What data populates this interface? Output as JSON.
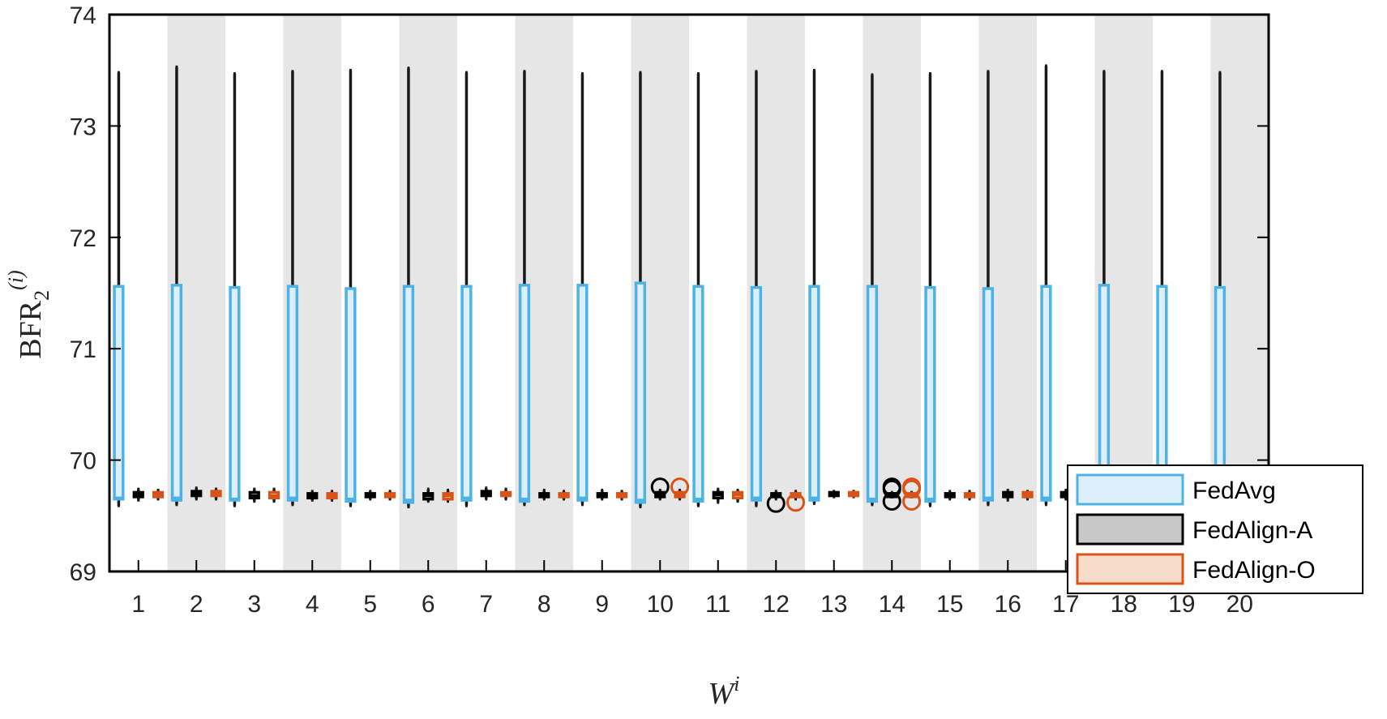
{
  "chart_data": {
    "type": "box",
    "xlabel": "W",
    "xlabel_sup": "i",
    "ylabel": "BFR",
    "ylabel_sub": "2",
    "ylabel_sup": "(i)",
    "ylim": [
      69,
      74
    ],
    "yticks": [
      "69",
      "70",
      "71",
      "72",
      "73",
      "74"
    ],
    "categories": [
      "1",
      "2",
      "3",
      "4",
      "5",
      "6",
      "7",
      "8",
      "9",
      "10",
      "11",
      "12",
      "13",
      "14",
      "15",
      "16",
      "17",
      "18",
      "19",
      "20"
    ],
    "shaded_bands": [
      "2",
      "4",
      "6",
      "8",
      "10",
      "12",
      "14",
      "16",
      "18",
      "20"
    ],
    "legend_position": "bottom-right",
    "series": [
      {
        "name": "FedAvg",
        "edge_color": "#4DB3E6",
        "fill_color": "#DDEFFA",
        "median_color": "#4DB3E6",
        "boxes": [
          {
            "min": 69.59,
            "q1": 69.65,
            "median": 69.66,
            "q3": 71.56,
            "max": 73.48,
            "outliers": []
          },
          {
            "min": 69.6,
            "q1": 69.64,
            "median": 69.66,
            "q3": 71.57,
            "max": 73.53,
            "outliers": []
          },
          {
            "min": 69.59,
            "q1": 69.64,
            "median": 69.65,
            "q3": 71.55,
            "max": 73.47,
            "outliers": []
          },
          {
            "min": 69.6,
            "q1": 69.64,
            "median": 69.66,
            "q3": 71.56,
            "max": 73.49,
            "outliers": []
          },
          {
            "min": 69.59,
            "q1": 69.63,
            "median": 69.65,
            "q3": 71.54,
            "max": 73.5,
            "outliers": []
          },
          {
            "min": 69.58,
            "q1": 69.62,
            "median": 69.64,
            "q3": 71.56,
            "max": 73.52,
            "outliers": []
          },
          {
            "min": 69.59,
            "q1": 69.64,
            "median": 69.66,
            "q3": 71.56,
            "max": 73.48,
            "outliers": []
          },
          {
            "min": 69.6,
            "q1": 69.63,
            "median": 69.65,
            "q3": 71.57,
            "max": 73.49,
            "outliers": []
          },
          {
            "min": 69.6,
            "q1": 69.64,
            "median": 69.66,
            "q3": 71.57,
            "max": 73.47,
            "outliers": []
          },
          {
            "min": 69.58,
            "q1": 69.62,
            "median": 69.64,
            "q3": 71.59,
            "max": 73.48,
            "outliers": []
          },
          {
            "min": 69.59,
            "q1": 69.63,
            "median": 69.65,
            "q3": 71.56,
            "max": 73.47,
            "outliers": []
          },
          {
            "min": 69.59,
            "q1": 69.64,
            "median": 69.66,
            "q3": 71.55,
            "max": 73.49,
            "outliers": []
          },
          {
            "min": 69.61,
            "q1": 69.64,
            "median": 69.66,
            "q3": 71.56,
            "max": 73.5,
            "outliers": []
          },
          {
            "min": 69.6,
            "q1": 69.63,
            "median": 69.65,
            "q3": 71.56,
            "max": 73.46,
            "outliers": []
          },
          {
            "min": 69.59,
            "q1": 69.63,
            "median": 69.65,
            "q3": 71.55,
            "max": 73.47,
            "outliers": []
          },
          {
            "min": 69.6,
            "q1": 69.64,
            "median": 69.66,
            "q3": 71.54,
            "max": 73.49,
            "outliers": []
          },
          {
            "min": 69.6,
            "q1": 69.64,
            "median": 69.66,
            "q3": 71.56,
            "max": 73.54,
            "outliers": []
          },
          {
            "min": 69.6,
            "q1": 69.64,
            "median": 69.66,
            "q3": 71.57,
            "max": 73.49,
            "outliers": []
          },
          {
            "min": 69.6,
            "q1": 69.64,
            "median": 69.66,
            "q3": 71.56,
            "max": 73.49,
            "outliers": []
          },
          {
            "min": 69.6,
            "q1": 69.64,
            "median": 69.66,
            "q3": 71.55,
            "max": 73.48,
            "outliers": []
          }
        ]
      },
      {
        "name": "FedAlign-A",
        "edge_color": "#000000",
        "fill_color": "#C8C8C8",
        "median_color": "#000000",
        "boxes": [
          {
            "min": 69.64,
            "q1": 69.67,
            "median": 69.69,
            "q3": 69.71,
            "max": 69.74,
            "outliers": []
          },
          {
            "min": 69.65,
            "q1": 69.68,
            "median": 69.7,
            "q3": 69.72,
            "max": 69.75,
            "outliers": []
          },
          {
            "min": 69.63,
            "q1": 69.66,
            "median": 69.68,
            "q3": 69.71,
            "max": 69.74,
            "outliers": []
          },
          {
            "min": 69.64,
            "q1": 69.66,
            "median": 69.68,
            "q3": 69.7,
            "max": 69.72,
            "outliers": []
          },
          {
            "min": 69.65,
            "q1": 69.67,
            "median": 69.69,
            "q3": 69.7,
            "max": 69.72,
            "outliers": []
          },
          {
            "min": 69.63,
            "q1": 69.65,
            "median": 69.68,
            "q3": 69.7,
            "max": 69.74,
            "outliers": []
          },
          {
            "min": 69.65,
            "q1": 69.68,
            "median": 69.7,
            "q3": 69.72,
            "max": 69.75,
            "outliers": []
          },
          {
            "min": 69.65,
            "q1": 69.67,
            "median": 69.69,
            "q3": 69.7,
            "max": 69.73,
            "outliers": []
          },
          {
            "min": 69.65,
            "q1": 69.67,
            "median": 69.69,
            "q3": 69.7,
            "max": 69.73,
            "outliers": []
          },
          {
            "min": 69.65,
            "q1": 69.67,
            "median": 69.69,
            "q3": 69.71,
            "max": 69.73,
            "outliers": [
              69.76
            ]
          },
          {
            "min": 69.62,
            "q1": 69.66,
            "median": 69.69,
            "q3": 69.71,
            "max": 69.74,
            "outliers": []
          },
          {
            "min": 69.65,
            "q1": 69.67,
            "median": 69.68,
            "q3": 69.7,
            "max": 69.72,
            "outliers": [
              69.61
            ]
          },
          {
            "min": 69.67,
            "q1": 69.68,
            "median": 69.7,
            "q3": 69.71,
            "max": 69.72,
            "outliers": []
          },
          {
            "min": 69.67,
            "q1": 69.68,
            "median": 69.69,
            "q3": 69.7,
            "max": 69.71,
            "outliers": [
              69.76,
              69.74,
              69.63
            ]
          },
          {
            "min": 69.65,
            "q1": 69.67,
            "median": 69.69,
            "q3": 69.7,
            "max": 69.72,
            "outliers": []
          },
          {
            "min": 69.64,
            "q1": 69.67,
            "median": 69.69,
            "q3": 69.71,
            "max": 69.73,
            "outliers": []
          },
          {
            "min": 69.65,
            "q1": 69.67,
            "median": 69.69,
            "q3": 69.71,
            "max": 69.73,
            "outliers": []
          },
          {
            "min": 69.65,
            "q1": 69.67,
            "median": 69.69,
            "q3": 69.71,
            "max": 69.73,
            "outliers": []
          },
          {
            "min": 69.65,
            "q1": 69.67,
            "median": 69.69,
            "q3": 69.71,
            "max": 69.73,
            "outliers": []
          },
          {
            "min": 69.65,
            "q1": 69.67,
            "median": 69.69,
            "q3": 69.71,
            "max": 69.73,
            "outliers": []
          }
        ]
      },
      {
        "name": "FedAlign-O",
        "edge_color": "#D95319",
        "fill_color": "#F8DCCB",
        "median_color": "#D95319",
        "boxes": [
          {
            "min": 69.65,
            "q1": 69.67,
            "median": 69.69,
            "q3": 69.71,
            "max": 69.73,
            "outliers": []
          },
          {
            "min": 69.65,
            "q1": 69.68,
            "median": 69.7,
            "q3": 69.72,
            "max": 69.74,
            "outliers": []
          },
          {
            "min": 69.63,
            "q1": 69.66,
            "median": 69.68,
            "q3": 69.71,
            "max": 69.74,
            "outliers": []
          },
          {
            "min": 69.64,
            "q1": 69.66,
            "median": 69.68,
            "q3": 69.7,
            "max": 69.72,
            "outliers": []
          },
          {
            "min": 69.65,
            "q1": 69.67,
            "median": 69.69,
            "q3": 69.7,
            "max": 69.72,
            "outliers": []
          },
          {
            "min": 69.63,
            "q1": 69.65,
            "median": 69.68,
            "q3": 69.7,
            "max": 69.73,
            "outliers": []
          },
          {
            "min": 69.65,
            "q1": 69.68,
            "median": 69.7,
            "q3": 69.71,
            "max": 69.74,
            "outliers": []
          },
          {
            "min": 69.65,
            "q1": 69.67,
            "median": 69.69,
            "q3": 69.7,
            "max": 69.72,
            "outliers": []
          },
          {
            "min": 69.65,
            "q1": 69.67,
            "median": 69.68,
            "q3": 69.7,
            "max": 69.72,
            "outliers": []
          },
          {
            "min": 69.65,
            "q1": 69.67,
            "median": 69.69,
            "q3": 69.71,
            "max": 69.73,
            "outliers": [
              69.76
            ]
          },
          {
            "min": 69.63,
            "q1": 69.66,
            "median": 69.69,
            "q3": 69.71,
            "max": 69.73,
            "outliers": []
          },
          {
            "min": 69.65,
            "q1": 69.67,
            "median": 69.68,
            "q3": 69.7,
            "max": 69.72,
            "outliers": [
              69.62
            ]
          },
          {
            "min": 69.67,
            "q1": 69.68,
            "median": 69.7,
            "q3": 69.71,
            "max": 69.72,
            "outliers": []
          },
          {
            "min": 69.67,
            "q1": 69.68,
            "median": 69.69,
            "q3": 69.7,
            "max": 69.71,
            "outliers": [
              69.76,
              69.74,
              69.63
            ]
          },
          {
            "min": 69.65,
            "q1": 69.67,
            "median": 69.69,
            "q3": 69.7,
            "max": 69.72,
            "outliers": []
          },
          {
            "min": 69.65,
            "q1": 69.67,
            "median": 69.69,
            "q3": 69.71,
            "max": 69.72,
            "outliers": []
          },
          {
            "min": 69.65,
            "q1": 69.67,
            "median": 69.69,
            "q3": 69.71,
            "max": 69.72,
            "outliers": []
          },
          {
            "min": 69.65,
            "q1": 69.67,
            "median": 69.69,
            "q3": 69.71,
            "max": 69.72,
            "outliers": []
          },
          {
            "min": 69.65,
            "q1": 69.67,
            "median": 69.69,
            "q3": 69.71,
            "max": 69.72,
            "outliers": []
          },
          {
            "min": 69.65,
            "q1": 69.67,
            "median": 69.69,
            "q3": 69.71,
            "max": 69.72,
            "outliers": []
          }
        ]
      }
    ]
  }
}
